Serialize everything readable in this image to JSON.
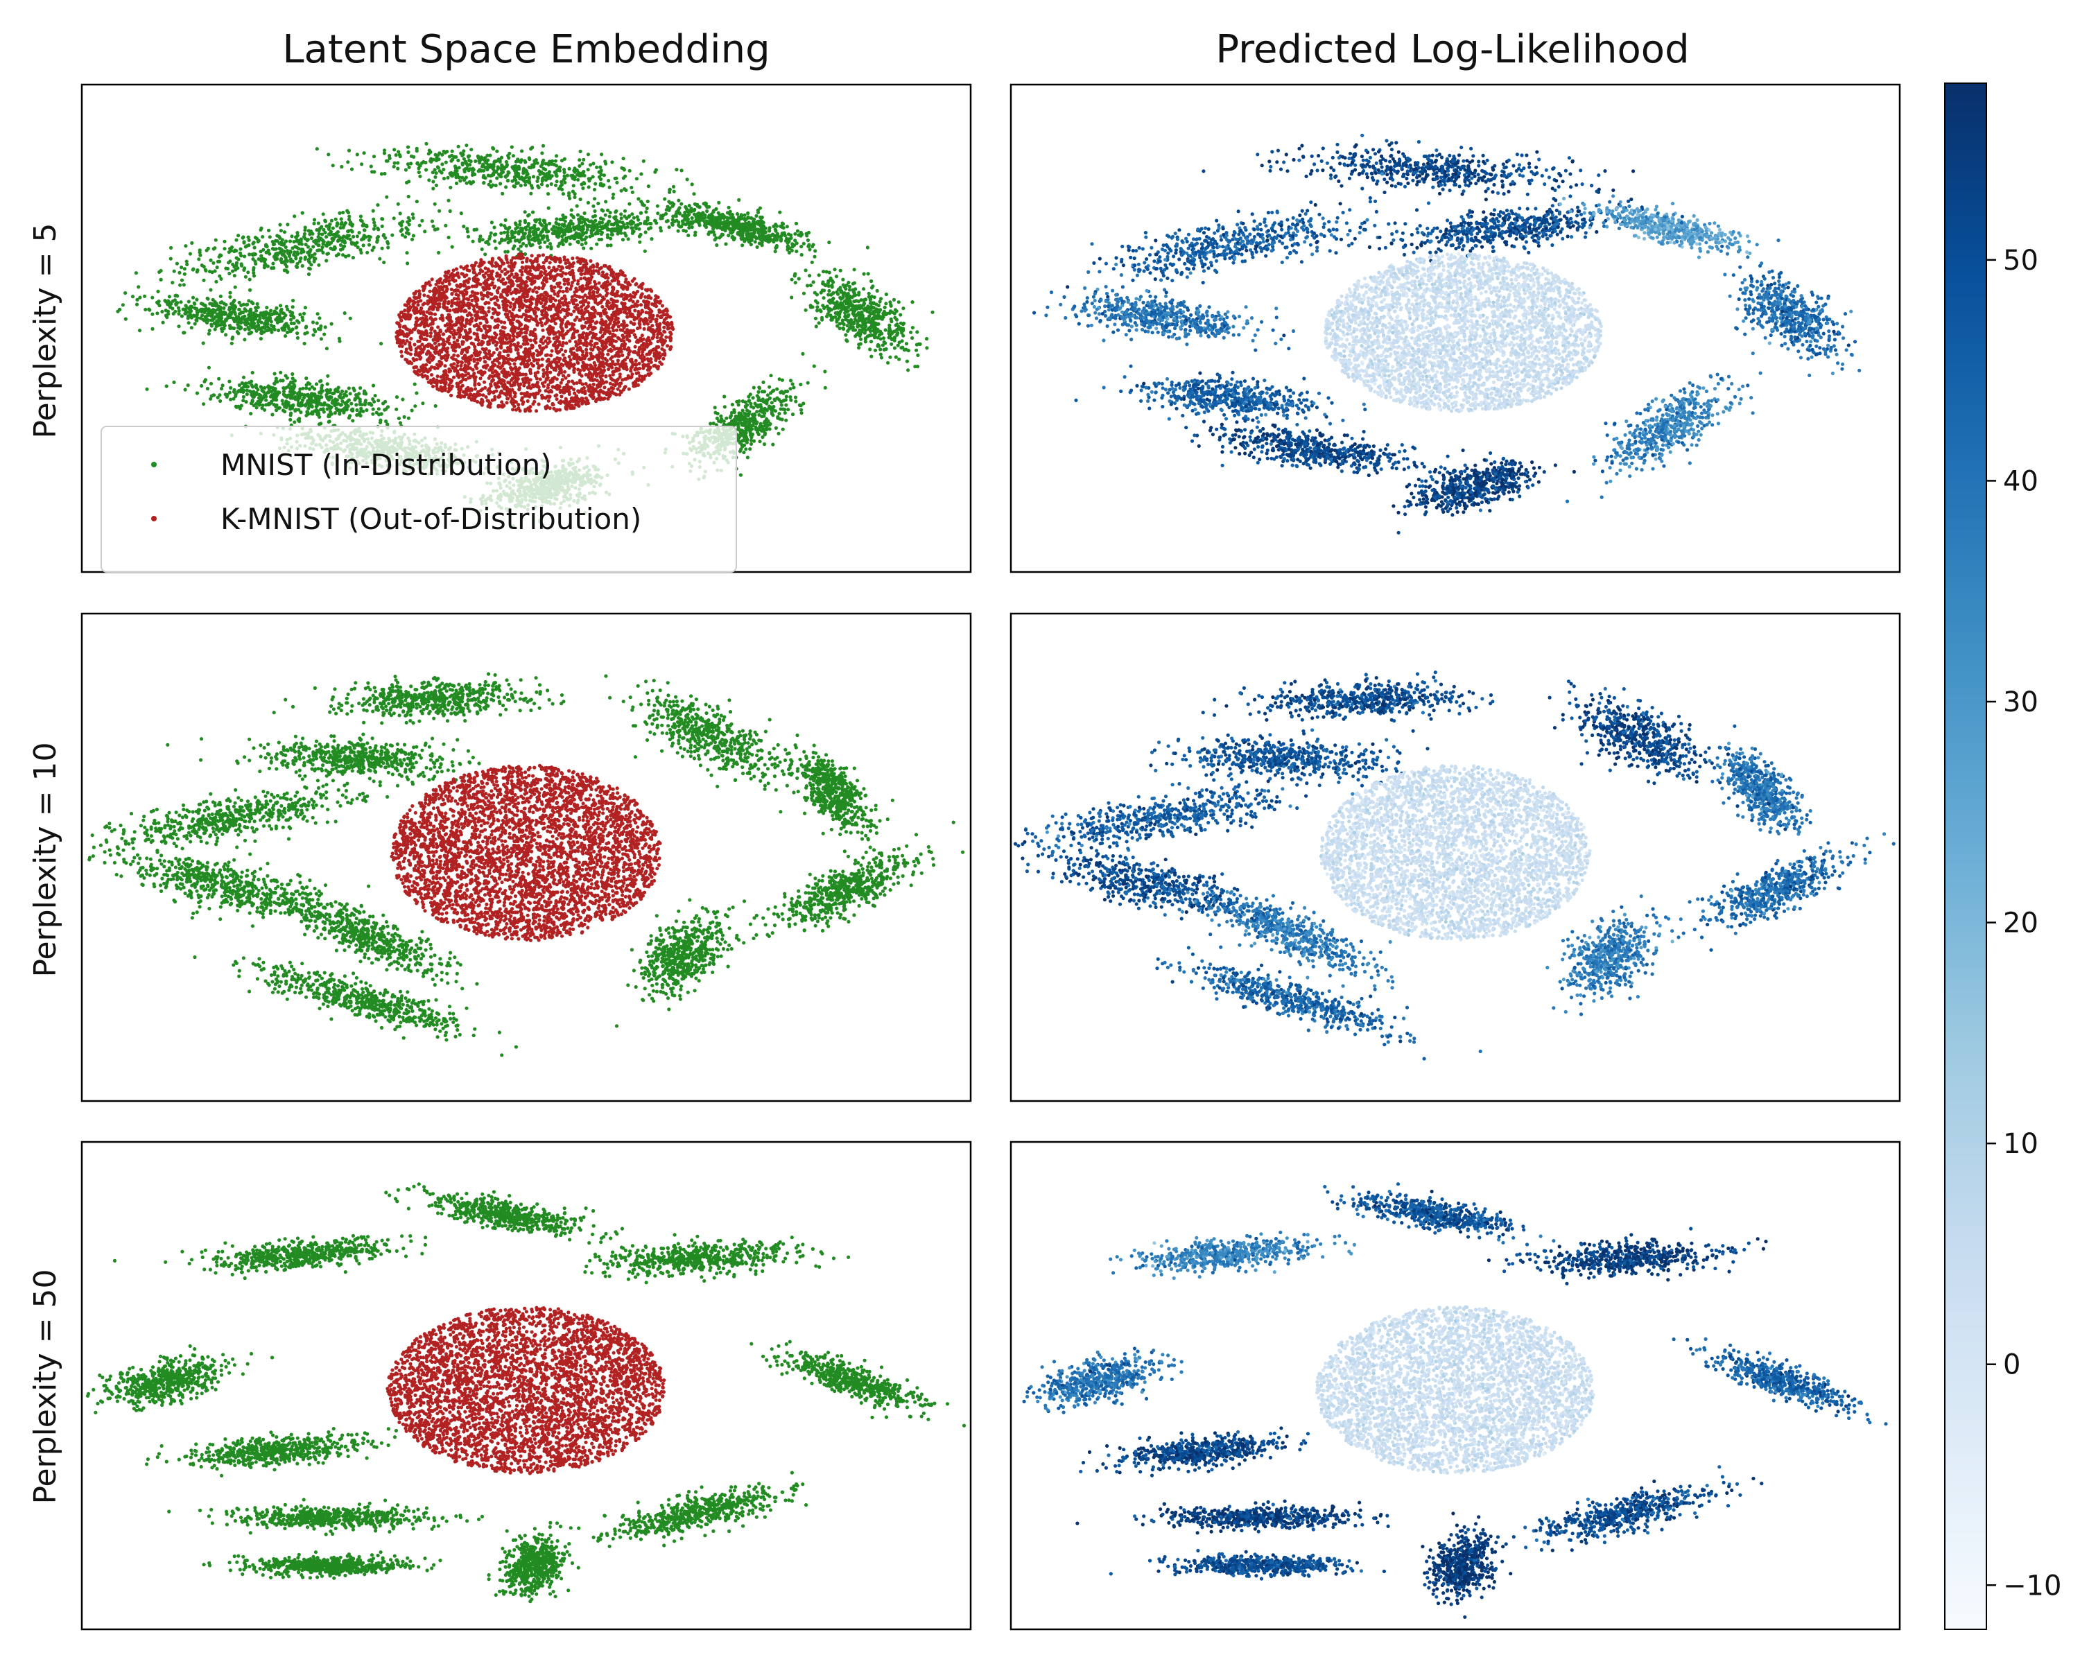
{
  "chart_data": {
    "type": "scatter",
    "columns": [
      "Latent Space Embedding",
      "Predicted Log-Likelihood"
    ],
    "rows": [
      "Perplexity = 5",
      "Perplexity = 10",
      "Perplexity = 50"
    ],
    "legend": {
      "position": "lower-left",
      "entries": [
        {
          "label": "MNIST (In-Distribution)",
          "color": "#228B22"
        },
        {
          "label": "K-MNIST (Out-of-Distribution)",
          "color": "#B22222"
        }
      ]
    },
    "colorbar": {
      "colormap": "Blues",
      "range": [
        -12,
        58
      ],
      "ticks": [
        {
          "value": 50,
          "label": "50"
        },
        {
          "value": 40,
          "label": "40"
        },
        {
          "value": 30,
          "label": "30"
        },
        {
          "value": 20,
          "label": "20"
        },
        {
          "value": 10,
          "label": "10"
        },
        {
          "value": 0,
          "label": "0"
        },
        {
          "value": -10,
          "label": "−10"
        }
      ]
    },
    "axes_ticks": "none",
    "panels": [
      {
        "row": "Perplexity = 5",
        "ood_core": {
          "cx": 0.02,
          "cy": -0.02,
          "rx": 0.34,
          "ry": 0.36
        },
        "in_clusters": [
          {
            "cx": -0.55,
            "cy": 0.38,
            "len": 0.32,
            "wid": 0.1,
            "angle": 20,
            "ll": 46
          },
          {
            "cx": -0.05,
            "cy": 0.72,
            "len": 0.34,
            "wid": 0.09,
            "angle": -8,
            "ll": 52
          },
          {
            "cx": 0.12,
            "cy": 0.45,
            "len": 0.26,
            "wid": 0.08,
            "angle": 12,
            "ll": 50
          },
          {
            "cx": -0.72,
            "cy": 0.05,
            "len": 0.22,
            "wid": 0.08,
            "angle": -15,
            "ll": 40
          },
          {
            "cx": -0.55,
            "cy": -0.32,
            "len": 0.22,
            "wid": 0.08,
            "angle": -10,
            "ll": 45
          },
          {
            "cx": -0.35,
            "cy": -0.55,
            "len": 0.24,
            "wid": 0.08,
            "angle": -15,
            "ll": 52
          },
          {
            "cx": 0.05,
            "cy": -0.72,
            "len": 0.16,
            "wid": 0.09,
            "angle": 30,
            "ll": 54
          },
          {
            "cx": 0.52,
            "cy": -0.45,
            "len": 0.22,
            "wid": 0.08,
            "angle": 55,
            "ll": 36
          },
          {
            "cx": 0.82,
            "cy": 0.06,
            "len": 0.2,
            "wid": 0.09,
            "angle": -60,
            "ll": 42
          },
          {
            "cx": 0.52,
            "cy": 0.46,
            "len": 0.18,
            "wid": 0.06,
            "angle": -25,
            "ll": 28
          }
        ]
      },
      {
        "row": "Perplexity = 10",
        "ood_core": {
          "cx": 0.0,
          "cy": 0.02,
          "rx": 0.33,
          "ry": 0.4
        },
        "in_clusters": [
          {
            "cx": -0.22,
            "cy": 0.72,
            "len": 0.24,
            "wid": 0.08,
            "angle": 5,
            "ll": 50
          },
          {
            "cx": -0.42,
            "cy": 0.45,
            "len": 0.24,
            "wid": 0.08,
            "angle": -5,
            "ll": 48
          },
          {
            "cx": 0.45,
            "cy": 0.55,
            "len": 0.22,
            "wid": 0.1,
            "angle": -50,
            "ll": 52
          },
          {
            "cx": -0.72,
            "cy": 0.18,
            "len": 0.3,
            "wid": 0.09,
            "angle": 20,
            "ll": 46
          },
          {
            "cx": -0.75,
            "cy": -0.12,
            "len": 0.26,
            "wid": 0.09,
            "angle": -25,
            "ll": 50
          },
          {
            "cx": -0.4,
            "cy": -0.35,
            "len": 0.26,
            "wid": 0.08,
            "angle": -40,
            "ll": 38
          },
          {
            "cx": -0.4,
            "cy": -0.65,
            "len": 0.28,
            "wid": 0.07,
            "angle": -30,
            "ll": 44
          },
          {
            "cx": 0.38,
            "cy": -0.45,
            "len": 0.18,
            "wid": 0.09,
            "angle": 70,
            "ll": 38
          },
          {
            "cx": 0.75,
            "cy": 0.3,
            "len": 0.18,
            "wid": 0.07,
            "angle": -70,
            "ll": 40
          },
          {
            "cx": 0.78,
            "cy": -0.15,
            "len": 0.22,
            "wid": 0.08,
            "angle": 45,
            "ll": 42
          }
        ]
      },
      {
        "row": "Perplexity = 50",
        "ood_core": {
          "cx": 0.0,
          "cy": -0.02,
          "rx": 0.34,
          "ry": 0.38
        },
        "in_clusters": [
          {
            "cx": -0.55,
            "cy": 0.6,
            "len": 0.22,
            "wid": 0.06,
            "angle": 10,
            "ll": 36
          },
          {
            "cx": -0.05,
            "cy": 0.78,
            "len": 0.2,
            "wid": 0.06,
            "angle": -20,
            "ll": 48
          },
          {
            "cx": 0.42,
            "cy": 0.58,
            "len": 0.22,
            "wid": 0.07,
            "angle": 5,
            "ll": 54
          },
          {
            "cx": -0.88,
            "cy": 0.02,
            "len": 0.16,
            "wid": 0.08,
            "angle": 30,
            "ll": 40
          },
          {
            "cx": -0.62,
            "cy": -0.3,
            "len": 0.2,
            "wid": 0.06,
            "angle": 10,
            "ll": 52
          },
          {
            "cx": -0.48,
            "cy": -0.6,
            "len": 0.24,
            "wid": 0.05,
            "angle": 0,
            "ll": 54
          },
          {
            "cx": -0.48,
            "cy": -0.82,
            "len": 0.2,
            "wid": 0.04,
            "angle": 0,
            "ll": 50
          },
          {
            "cx": 0.02,
            "cy": -0.82,
            "len": 0.14,
            "wid": 0.07,
            "angle": 80,
            "ll": 56
          },
          {
            "cx": 0.42,
            "cy": -0.58,
            "len": 0.22,
            "wid": 0.07,
            "angle": 25,
            "ll": 50
          },
          {
            "cx": 0.8,
            "cy": 0.02,
            "len": 0.2,
            "wid": 0.06,
            "angle": -35,
            "ll": 44
          }
        ]
      }
    ]
  }
}
